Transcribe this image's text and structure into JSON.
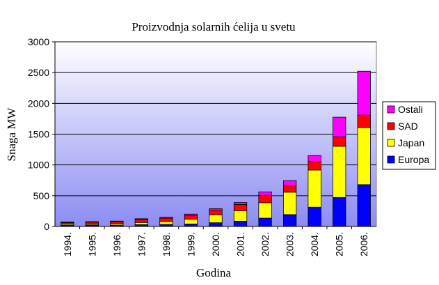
{
  "chart_data": {
    "type": "bar",
    "stacked": true,
    "title": "Proizvodnja solarnih ćelija u svetu",
    "xlabel": "Godina",
    "ylabel": "Snaga MW",
    "ylim": [
      0,
      3000
    ],
    "yticks": [
      0,
      500,
      1000,
      1500,
      2000,
      2500,
      3000
    ],
    "grid": true,
    "legend_position": "right",
    "categories": [
      "1994.",
      "1995.",
      "1996.",
      "1997.",
      "1998.",
      "1999.",
      "2000.",
      "2001.",
      "2002.",
      "2003.",
      "2004.",
      "2005.",
      "2006."
    ],
    "series": [
      {
        "name": "Europa",
        "color": "#0000ff",
        "values": [
          21,
          20,
          19,
          30,
          33,
          40,
          61,
          86,
          135,
          193,
          314,
          470,
          680
        ]
      },
      {
        "name": "Japan",
        "color": "#ffff00",
        "values": [
          17,
          16,
          21,
          35,
          49,
          80,
          129,
          171,
          251,
          364,
          602,
          833,
          928
        ]
      },
      {
        "name": "SAD",
        "color": "#ff0000",
        "values": [
          26,
          35,
          39,
          51,
          54,
          61,
          75,
          100,
          121,
          103,
          139,
          154,
          202
        ]
      },
      {
        "name": "Ostali",
        "color": "#ff00ff",
        "values": [
          8,
          7,
          9,
          10,
          12,
          20,
          23,
          33,
          55,
          84,
          97,
          319,
          712
        ]
      }
    ]
  }
}
